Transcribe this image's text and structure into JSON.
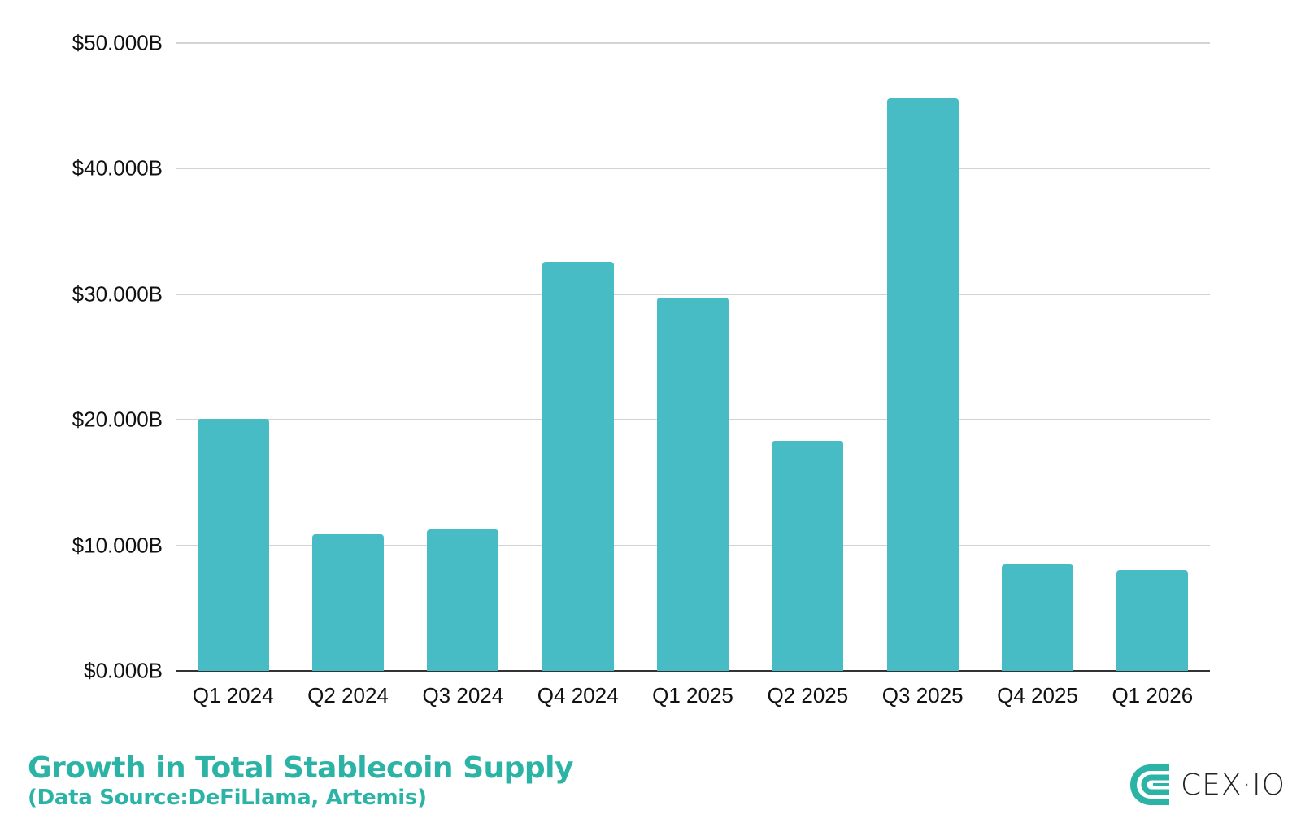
{
  "chart_data": {
    "type": "bar",
    "title": "Growth in Total Stablecoin Supply",
    "subtitle": "(Data Source:DeFiLlama, Artemis)",
    "xlabel": "",
    "ylabel": "",
    "categories": [
      "Q1 2024",
      "Q2 2024",
      "Q3 2024",
      "Q4 2024",
      "Q1 2025",
      "Q2 2025",
      "Q3 2025",
      "Q4 2025",
      "Q1 2026"
    ],
    "values": [
      20.1,
      10.9,
      11.3,
      32.6,
      29.7,
      18.3,
      45.6,
      8.5,
      8.0
    ],
    "units": "$B",
    "ylim": [
      0,
      50
    ],
    "yticks": [
      "$0.000B",
      "$10.000B",
      "$20.000B",
      "$30.000B",
      "$40.000B",
      "$50.000B"
    ],
    "grid": true,
    "legend": null,
    "bar_color": "#47bcc5"
  },
  "branding": {
    "logo_text": "CEX·IO",
    "logo_color": "#2bb3a6"
  }
}
